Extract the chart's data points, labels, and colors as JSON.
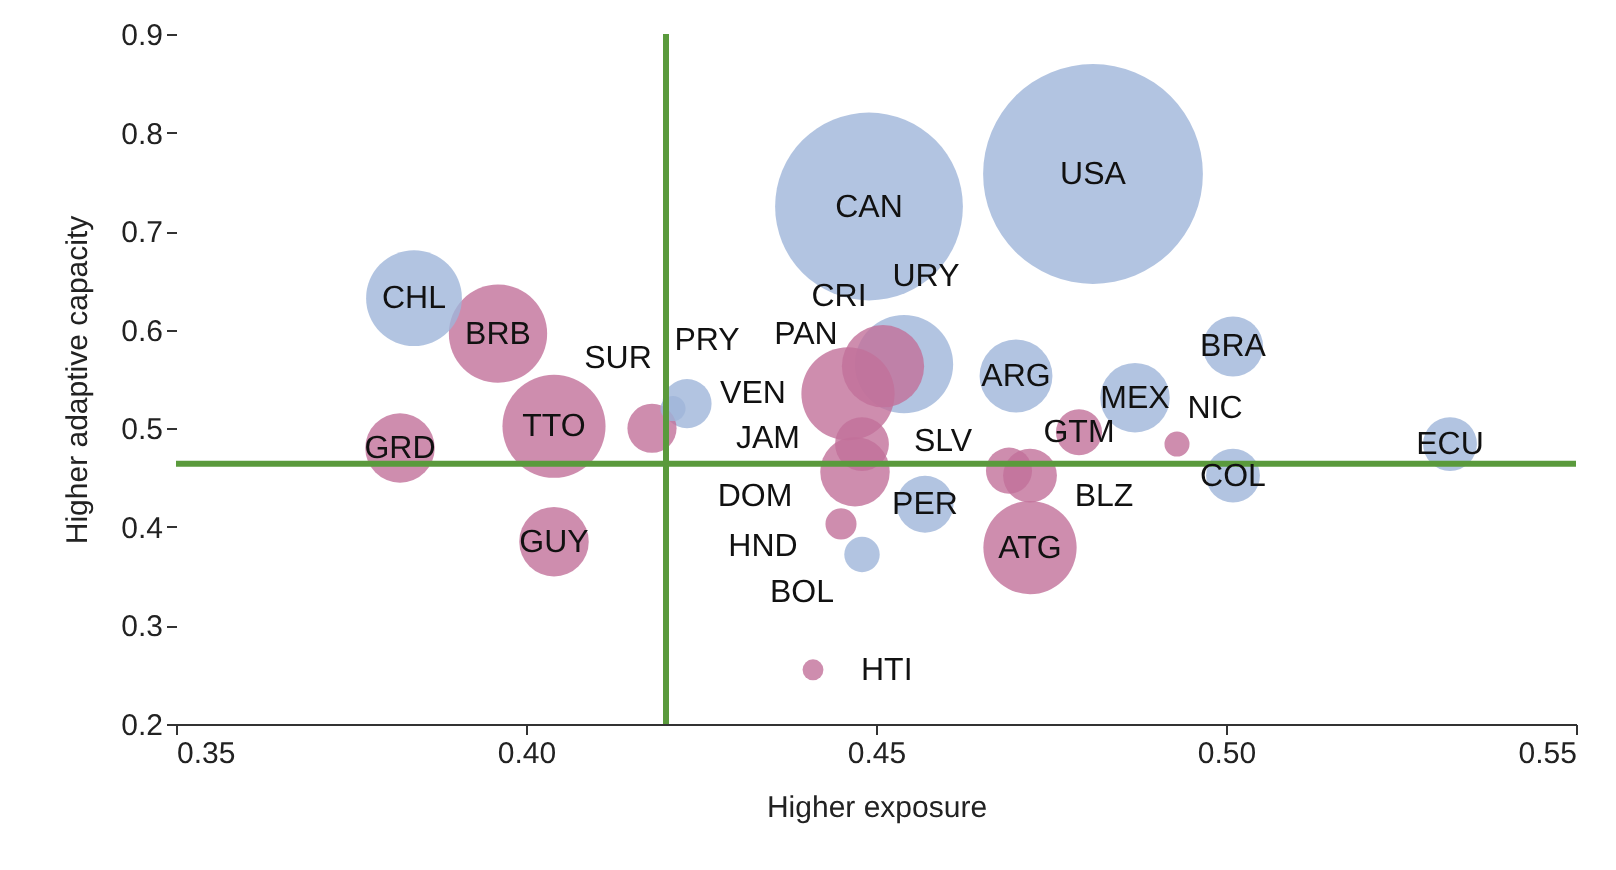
{
  "chart_data": {
    "type": "bubble",
    "xlabel": "Higher exposure",
    "ylabel": "Higher adaptive capacity",
    "xlim": [
      0.35,
      0.55
    ],
    "xticks": [
      0.35,
      {
        "value": 0.4,
        "label": "0.40"
      },
      0.45,
      {
        "value": 0.5,
        "label": "0.50"
      },
      0.55
    ],
    "ylim": [
      0.2,
      0.9
    ],
    "yticks": [
      0.2,
      0.3,
      0.4,
      0.5,
      0.6,
      0.7,
      0.8,
      0.9
    ],
    "grid": false,
    "marker": "circle",
    "series": [
      {
        "color": "#9fb5da",
        "x": [
          0.449,
          0.481,
          0.384,
          0.423,
          0.421,
          0.454,
          0.457,
          0.448,
          0.47,
          0.487,
          0.501,
          0.501,
          0.532
        ],
        "values": [
          0.725,
          0.758,
          0.632,
          0.525,
          0.52,
          0.565,
          0.423,
          0.372,
          0.553,
          0.531,
          0.583,
          0.452,
          0.484
        ],
        "sizes": [
          0.73,
          1,
          0.19,
          0.05,
          0.013,
          0.2,
          0.067,
          0.026,
          0.11,
          0.1,
          0.075,
          0.06,
          0.06
        ]
      },
      {
        "color": "#c2709a",
        "x": [
          0.396,
          0.404,
          0.382,
          0.404,
          0.418,
          0.446,
          0.451,
          0.448,
          0.447,
          0.445,
          0.469,
          0.472,
          0.472,
          0.479,
          0.493,
          0.441
        ],
        "values": [
          0.596,
          0.502,
          0.48,
          0.385,
          0.5,
          0.535,
          0.563,
          0.484,
          0.456,
          0.403,
          0.457,
          0.452,
          0.379,
          0.496,
          0.484,
          0.255
        ],
        "sizes": [
          0.2,
          0.22,
          0.1,
          0.1,
          0.05,
          0.18,
          0.14,
          0.06,
          0.1,
          0.02,
          0.044,
          0.06,
          0.18,
          0.044,
          0.013,
          0.009
        ]
      }
    ],
    "ref_lines": [
      {
        "axis": "x",
        "value": 0.42,
        "color": "#5a9a3c"
      },
      {
        "axis": "y",
        "value": 0.464,
        "color": "#5a9a3c"
      }
    ],
    "annotations": [
      {
        "text": "CAN",
        "x": 0.449,
        "y": 0.725
      },
      {
        "text": "USA",
        "x": 0.481,
        "y": 0.758
      },
      {
        "text": "CHL",
        "x": 0.384,
        "y": 0.632
      },
      {
        "text": "PRY",
        "x": 0.423,
        "y": 0.525
      },
      {
        "text": "VEN",
        "x": 0.421,
        "y": 0.52
      },
      {
        "text": "URY",
        "x": 0.454,
        "y": 0.565
      },
      {
        "text": "PER",
        "x": 0.457,
        "y": 0.423
      },
      {
        "text": "BOL",
        "x": 0.448,
        "y": 0.372
      },
      {
        "text": "ARG",
        "x": 0.47,
        "y": 0.553
      },
      {
        "text": "MEX",
        "x": 0.487,
        "y": 0.531
      },
      {
        "text": "BRA",
        "x": 0.501,
        "y": 0.583
      },
      {
        "text": "COL",
        "x": 0.501,
        "y": 0.452
      },
      {
        "text": "ECU",
        "x": 0.532,
        "y": 0.484
      },
      {
        "text": "BRB",
        "x": 0.396,
        "y": 0.596
      },
      {
        "text": "TTO",
        "x": 0.404,
        "y": 0.502
      },
      {
        "text": "GRD",
        "x": 0.382,
        "y": 0.48
      },
      {
        "text": "GUY",
        "x": 0.404,
        "y": 0.385
      },
      {
        "text": "SUR",
        "x": 0.418,
        "y": 0.5
      },
      {
        "text": "PAN",
        "x": 0.446,
        "y": 0.535
      },
      {
        "text": "CRI",
        "x": 0.451,
        "y": 0.563
      },
      {
        "text": "JAM",
        "x": 0.448,
        "y": 0.484
      },
      {
        "text": "DOM",
        "x": 0.447,
        "y": 0.456
      },
      {
        "text": "HND",
        "x": 0.445,
        "y": 0.403
      },
      {
        "text": "SLV",
        "x": 0.469,
        "y": 0.457
      },
      {
        "text": "BLZ",
        "x": 0.472,
        "y": 0.452
      },
      {
        "text": "ATG",
        "x": 0.472,
        "y": 0.379
      },
      {
        "text": "GTM",
        "x": 0.479,
        "y": 0.496
      },
      {
        "text": "NIC",
        "x": 0.493,
        "y": 0.484
      },
      {
        "text": "HTI",
        "x": 0.441,
        "y": 0.255
      }
    ]
  }
}
